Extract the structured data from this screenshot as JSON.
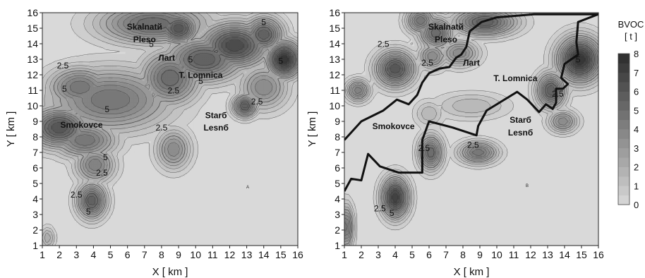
{
  "chart_data": [
    {
      "type": "heatmap",
      "panel_letter": "A",
      "xlabel": "X [ km ]",
      "ylabel": "Y [ km ]",
      "xlim": [
        1,
        16
      ],
      "ylim": [
        1,
        16
      ],
      "x_ticks": [
        1,
        2,
        3,
        4,
        5,
        6,
        7,
        8,
        9,
        10,
        11,
        12,
        13,
        14,
        15,
        16
      ],
      "y_ticks": [
        1,
        2,
        3,
        4,
        5,
        6,
        7,
        8,
        9,
        10,
        11,
        12,
        13,
        14,
        15,
        16
      ],
      "place_labels": [
        {
          "text": "Skalnatй",
          "x": 7.0,
          "y": 14.9
        },
        {
          "text": "Pleso",
          "x": 7.0,
          "y": 14.1
        },
        {
          "text": "Лart",
          "x": 8.3,
          "y": 12.9
        },
        {
          "text": "T. Lomnica",
          "x": 10.3,
          "y": 11.8
        },
        {
          "text": "Smokovce",
          "x": 3.3,
          "y": 8.6
        },
        {
          "text": "Starб",
          "x": 11.2,
          "y": 9.2
        },
        {
          "text": "Lesnб",
          "x": 11.2,
          "y": 8.4
        }
      ],
      "contour_labels": [
        {
          "text": "2.5",
          "x": 2.2,
          "y": 12.4
        },
        {
          "text": "5",
          "x": 7.4,
          "y": 13.8
        },
        {
          "text": "5",
          "x": 2.3,
          "y": 10.9
        },
        {
          "text": "5",
          "x": 4.8,
          "y": 9.6
        },
        {
          "text": "2.5",
          "x": 8.7,
          "y": 10.8
        },
        {
          "text": "5",
          "x": 9.7,
          "y": 12.8
        },
        {
          "text": "5",
          "x": 10.3,
          "y": 11.4
        },
        {
          "text": "2.5",
          "x": 13.6,
          "y": 10.1
        },
        {
          "text": "5",
          "x": 14.0,
          "y": 15.2
        },
        {
          "text": "5",
          "x": 15.0,
          "y": 12.7
        },
        {
          "text": "2.5",
          "x": 8.0,
          "y": 8.4
        },
        {
          "text": "5",
          "x": 4.7,
          "y": 6.5
        },
        {
          "text": "2.5",
          "x": 4.5,
          "y": 5.5
        },
        {
          "text": "2.5",
          "x": 3.0,
          "y": 4.1
        },
        {
          "text": "5",
          "x": 3.7,
          "y": 3.0
        }
      ],
      "peaks": [
        {
          "x": 7.5,
          "y": 15.3,
          "v": 5.5,
          "sx": 2.2,
          "sy": 0.9
        },
        {
          "x": 9.0,
          "y": 15.0,
          "v": 6.5,
          "sx": 0.8,
          "sy": 0.7
        },
        {
          "x": 12.3,
          "y": 13.9,
          "v": 7.0,
          "sx": 1.4,
          "sy": 1.0
        },
        {
          "x": 14.0,
          "y": 14.6,
          "v": 6.0,
          "sx": 0.8,
          "sy": 0.8
        },
        {
          "x": 15.2,
          "y": 13.0,
          "v": 8.0,
          "sx": 0.7,
          "sy": 0.8
        },
        {
          "x": 3.2,
          "y": 11.2,
          "v": 5.0,
          "sx": 1.3,
          "sy": 0.9
        },
        {
          "x": 5.0,
          "y": 10.4,
          "v": 5.0,
          "sx": 2.5,
          "sy": 1.4
        },
        {
          "x": 8.5,
          "y": 11.8,
          "v": 5.5,
          "sx": 1.2,
          "sy": 1.2
        },
        {
          "x": 2.0,
          "y": 8.6,
          "v": 6.5,
          "sx": 1.2,
          "sy": 0.9
        },
        {
          "x": 3.5,
          "y": 7.8,
          "v": 5.0,
          "sx": 1.3,
          "sy": 0.8
        },
        {
          "x": 4.1,
          "y": 6.2,
          "v": 4.5,
          "sx": 0.8,
          "sy": 0.8
        },
        {
          "x": 3.9,
          "y": 3.9,
          "v": 6.0,
          "sx": 0.6,
          "sy": 0.8
        },
        {
          "x": 8.7,
          "y": 7.2,
          "v": 4.0,
          "sx": 0.7,
          "sy": 0.9
        },
        {
          "x": 12.9,
          "y": 10.0,
          "v": 6.0,
          "sx": 0.5,
          "sy": 0.5
        },
        {
          "x": 14.0,
          "y": 11.2,
          "v": 4.0,
          "sx": 1.0,
          "sy": 1.0
        },
        {
          "x": 10.5,
          "y": 13.0,
          "v": 6.0,
          "sx": 1.6,
          "sy": 1.0
        },
        {
          "x": 1.3,
          "y": 1.5,
          "v": 2.5,
          "sx": 0.3,
          "sy": 0.5
        }
      ]
    },
    {
      "type": "heatmap",
      "panel_letter": "B",
      "xlabel": "X [ km ]",
      "ylabel": "Y [ km ]",
      "xlim": [
        1,
        16
      ],
      "ylim": [
        1,
        16
      ],
      "x_ticks": [
        1,
        2,
        3,
        4,
        5,
        6,
        7,
        8,
        9,
        10,
        11,
        12,
        13,
        14,
        15,
        16
      ],
      "y_ticks": [
        1,
        2,
        3,
        4,
        5,
        6,
        7,
        8,
        9,
        10,
        11,
        12,
        13,
        14,
        15,
        16
      ],
      "place_labels": [
        {
          "text": "Skalnatй",
          "x": 7.0,
          "y": 14.9
        },
        {
          "text": "Pleso",
          "x": 7.0,
          "y": 14.1
        },
        {
          "text": "Лart",
          "x": 8.5,
          "y": 12.6
        },
        {
          "text": "T. Lomnica",
          "x": 11.1,
          "y": 11.6
        },
        {
          "text": "Smokovce",
          "x": 3.9,
          "y": 8.5
        },
        {
          "text": "Starб",
          "x": 11.4,
          "y": 8.9
        },
        {
          "text": "Lesnб",
          "x": 11.4,
          "y": 8.1
        }
      ],
      "contour_labels": [
        {
          "text": "2.5",
          "x": 3.3,
          "y": 13.8
        },
        {
          "text": "2.5",
          "x": 5.9,
          "y": 12.6
        },
        {
          "text": "2.5",
          "x": 5.7,
          "y": 7.1
        },
        {
          "text": "2.5",
          "x": 8.6,
          "y": 7.3
        },
        {
          "text": "2.5",
          "x": 13.6,
          "y": 10.6
        },
        {
          "text": "5",
          "x": 14.8,
          "y": 12.8
        },
        {
          "text": "2.5",
          "x": 3.1,
          "y": 3.2
        },
        {
          "text": "5",
          "x": 3.8,
          "y": 2.9
        }
      ],
      "boundary_line": [
        [
          1,
          4.5
        ],
        [
          1.4,
          5.3
        ],
        [
          2,
          5.2
        ],
        [
          2.4,
          6.9
        ],
        [
          3.1,
          6.1
        ],
        [
          4.2,
          5.7
        ],
        [
          5.6,
          5.7
        ],
        [
          5.6,
          7.8
        ],
        [
          6,
          9
        ],
        [
          7.4,
          8.6
        ],
        [
          8.8,
          8.1
        ],
        [
          8.9,
          8.7
        ],
        [
          9.4,
          9.7
        ],
        [
          10.3,
          10.3
        ],
        [
          11.2,
          10.9
        ],
        [
          11.8,
          10.4
        ],
        [
          12.5,
          9.6
        ],
        [
          12.9,
          10.1
        ],
        [
          13.3,
          9.8
        ],
        [
          13.5,
          10.2
        ],
        [
          13.5,
          11.1
        ],
        [
          13.9,
          11.1
        ],
        [
          14.2,
          11.4
        ],
        [
          13.8,
          11.8
        ],
        [
          14.0,
          12.7
        ],
        [
          14.8,
          13.3
        ],
        [
          14.7,
          14.1
        ],
        [
          14.8,
          15.4
        ],
        [
          16,
          15.9
        ],
        [
          12.2,
          15.9
        ],
        [
          10,
          15.7
        ],
        [
          9.1,
          15.4
        ],
        [
          8.4,
          14.8
        ],
        [
          8.2,
          13.8
        ],
        [
          7.9,
          13.3
        ],
        [
          7.6,
          13.1
        ],
        [
          7.2,
          12.5
        ],
        [
          6.6,
          12.4
        ],
        [
          6.0,
          12.1
        ],
        [
          5.6,
          11.5
        ],
        [
          5.3,
          10.7
        ],
        [
          4.8,
          10.1
        ],
        [
          4.1,
          10.4
        ],
        [
          3.3,
          9.7
        ],
        [
          2.0,
          9.0
        ],
        [
          1.0,
          7.8
        ]
      ],
      "peaks": [
        {
          "x": 5.5,
          "y": 15.5,
          "v": 5.0,
          "sx": 0.6,
          "sy": 0.6
        },
        {
          "x": 6.4,
          "y": 14.7,
          "v": 5.5,
          "sx": 0.7,
          "sy": 0.7
        },
        {
          "x": 9.3,
          "y": 15.4,
          "v": 6.0,
          "sx": 1.3,
          "sy": 0.6
        },
        {
          "x": 4.0,
          "y": 12.4,
          "v": 6.5,
          "sx": 0.8,
          "sy": 0.8
        },
        {
          "x": 6.2,
          "y": 13.2,
          "v": 4.0,
          "sx": 0.6,
          "sy": 0.6
        },
        {
          "x": 7.8,
          "y": 13.4,
          "v": 4.0,
          "sx": 0.8,
          "sy": 0.6
        },
        {
          "x": 1.8,
          "y": 11.0,
          "v": 4.5,
          "sx": 0.5,
          "sy": 0.5
        },
        {
          "x": 14.9,
          "y": 13.0,
          "v": 8.0,
          "sx": 0.9,
          "sy": 1.0
        },
        {
          "x": 13.2,
          "y": 11.0,
          "v": 6.0,
          "sx": 0.6,
          "sy": 0.8
        },
        {
          "x": 13.9,
          "y": 9.0,
          "v": 4.0,
          "sx": 0.6,
          "sy": 0.5
        },
        {
          "x": 6.1,
          "y": 7.0,
          "v": 5.5,
          "sx": 0.5,
          "sy": 0.8
        },
        {
          "x": 8.9,
          "y": 7.0,
          "v": 5.0,
          "sx": 0.8,
          "sy": 0.5
        },
        {
          "x": 4.0,
          "y": 4.1,
          "v": 7.5,
          "sx": 0.55,
          "sy": 0.9
        },
        {
          "x": 1.1,
          "y": 2.2,
          "v": 5.0,
          "sx": 0.3,
          "sy": 1.0
        },
        {
          "x": 8.5,
          "y": 10.0,
          "v": 2.0,
          "sx": 1.5,
          "sy": 0.6
        },
        {
          "x": 6.0,
          "y": 9.5,
          "v": 2.0,
          "sx": 0.6,
          "sy": 0.6
        }
      ]
    }
  ],
  "legend": {
    "title_line1": "BVOC",
    "title_line2": "[ t ]",
    "levels": [
      0,
      1,
      2,
      3,
      4,
      5,
      6,
      7,
      8
    ],
    "color_low": "#d9d9d9",
    "color_high": "#2c2c2c"
  }
}
